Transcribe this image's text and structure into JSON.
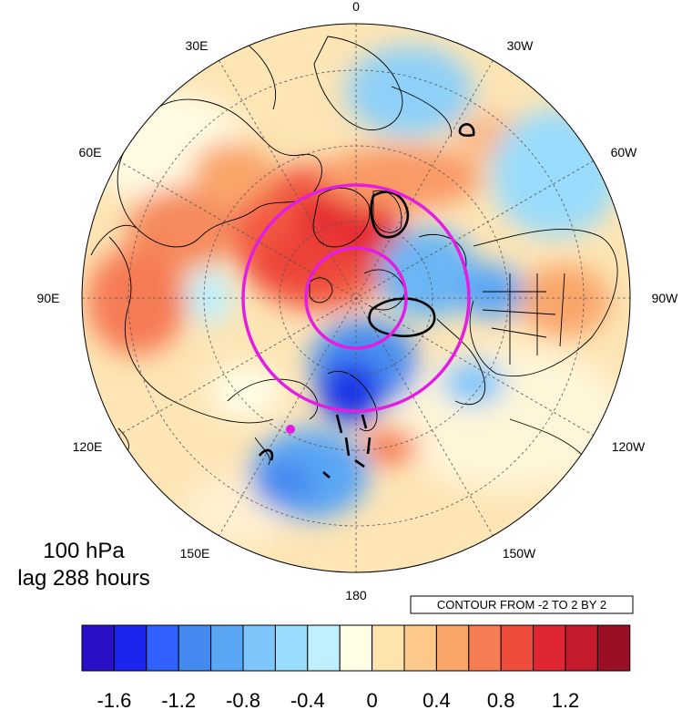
{
  "map": {
    "level": "100 hPa",
    "lag": "lag 288 hours",
    "contour_note": "CONTOUR FROM -2 TO 2 BY 2",
    "longitude_labels": {
      "top": "0",
      "bottom": "180",
      "left": "90E",
      "right": "90W",
      "upper_left_1": "30E",
      "upper_left_2": "60E",
      "lower_left_1": "120E",
      "lower_left_2": "150E",
      "upper_right_1": "30W",
      "upper_right_2": "60W",
      "lower_right_1": "120W",
      "lower_right_2": "150W"
    },
    "colorbar": {
      "colors": [
        "#2710c8",
        "#1a25f0",
        "#3060ff",
        "#4489f0",
        "#5aa6f5",
        "#7cc6fb",
        "#9adcfb",
        "#bff0fd",
        "#fffde6",
        "#fde3ac",
        "#fcc98a",
        "#f9a66b",
        "#f67c54",
        "#f04c3c",
        "#e12633",
        "#c41c2d",
        "#9a0f23"
      ],
      "tick_labels": [
        "-1.6",
        "-1.2",
        "-0.8",
        "-0.4",
        "0",
        "0.4",
        "0.8",
        "1.2"
      ]
    }
  }
}
